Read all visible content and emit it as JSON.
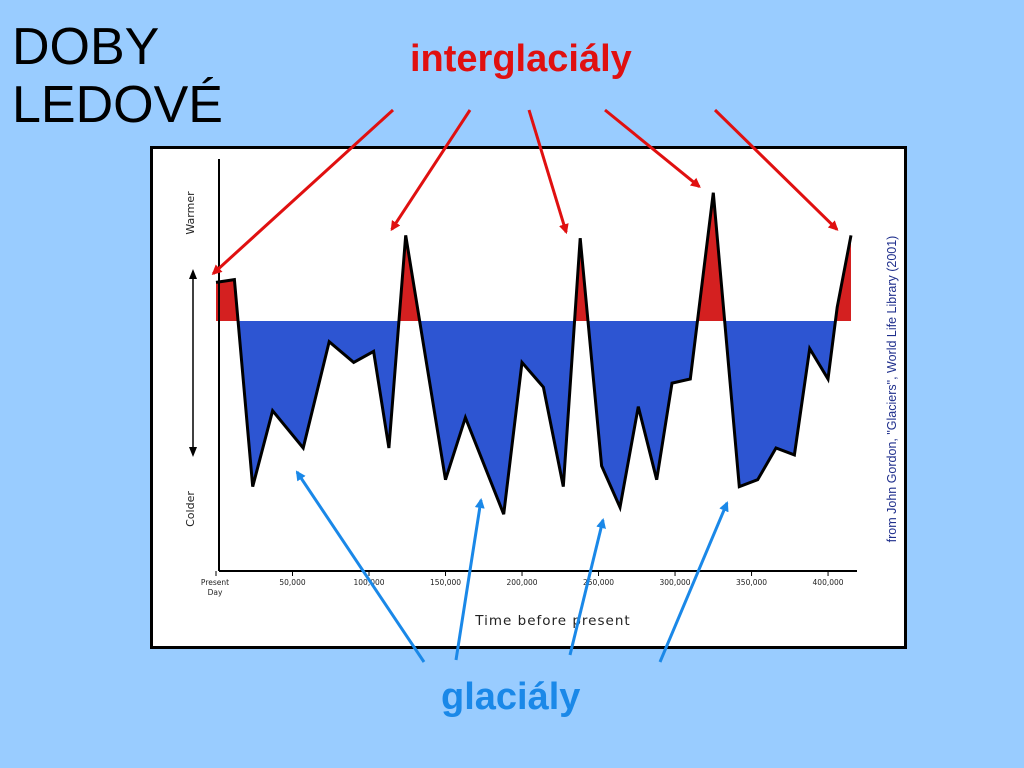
{
  "slide": {
    "title_line1": "DOBY",
    "title_line2": "LEDOVÉ",
    "interglacial_label": "interglaciály",
    "glacial_label": "glaciály",
    "colors": {
      "background": "#99ccff",
      "interglacial": "#e01010",
      "glacial": "#1a88e8"
    }
  },
  "chart_data": {
    "type": "area",
    "title": "",
    "xlabel": "Time before present",
    "ylabel_top": "Warmer",
    "ylabel_bottom": "Colder",
    "source": "from John Gordon, \"Glaciers\", World Life Library (2001)",
    "x_ticks": [
      "Present Day",
      "50,000",
      "100,000",
      "150,000",
      "200,000",
      "250,000",
      "300,000",
      "350,000",
      "400,000"
    ],
    "x_tick_values": [
      0,
      50000,
      100000,
      150000,
      200000,
      250000,
      300000,
      350000,
      400000
    ],
    "xlim": [
      0,
      415000
    ],
    "ylim": [
      -1,
      1
    ],
    "baseline": 0,
    "fill_above": "#d42020",
    "fill_below": "#2d55d2",
    "series": [
      {
        "x": [
          0,
          12000,
          24000,
          37000,
          57000,
          74000,
          90000,
          103000,
          113000,
          124000,
          150000,
          163000,
          188000,
          200000,
          214000,
          227000,
          238000,
          252000,
          264000,
          276000,
          288000,
          298000,
          310000,
          325000,
          342000,
          354000,
          366000,
          378000,
          388000,
          400000,
          406000,
          415000
        ],
        "y": [
          0.28,
          0.3,
          -1.2,
          -0.65,
          -0.92,
          -0.15,
          -0.3,
          -0.22,
          -0.92,
          0.62,
          -1.15,
          -0.7,
          -1.4,
          -0.3,
          -0.48,
          -1.2,
          0.6,
          -1.05,
          -1.35,
          -0.62,
          -1.15,
          -0.45,
          -0.42,
          0.93,
          -1.2,
          -1.15,
          -0.92,
          -0.97,
          -0.2,
          -0.42,
          0.1,
          0.62
        ]
      }
    ],
    "annotations": {
      "interglacial_peaks_x": [
        6000,
        124000,
        238000,
        325000,
        415000
      ],
      "glacial_troughs_x": [
        57000,
        188000,
        264000,
        342000
      ]
    }
  }
}
